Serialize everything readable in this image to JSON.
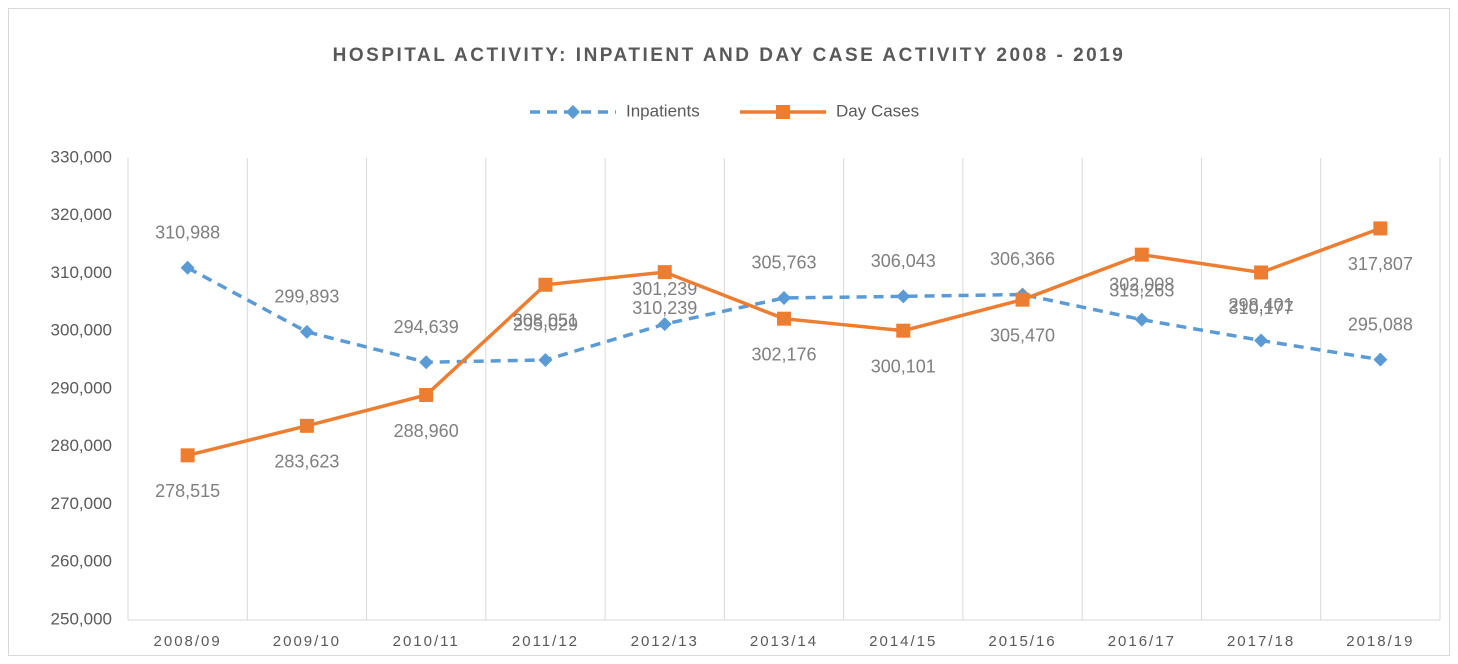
{
  "chart_data": {
    "type": "line",
    "title": "HOSPITAL ACTIVITY: INPATIENT AND DAY CASE ACTIVITY 2008 - 2019",
    "categories": [
      "2008/09",
      "2009/10",
      "2010/11",
      "2011/12",
      "2012/13",
      "2013/14",
      "2014/15",
      "2015/16",
      "2016/17",
      "2017/18",
      "2018/19"
    ],
    "series": [
      {
        "name": "Inpatients",
        "color": "#5b9bd5",
        "dashed": true,
        "marker": "diamond",
        "values": [
          310988,
          299893,
          294639,
          295029,
          301239,
          305763,
          306043,
          306366,
          302008,
          298401,
          295088
        ],
        "value_labels": [
          "310,988",
          "299,893",
          "294,639",
          "295,029",
          "301,239",
          "305,763",
          "306,043",
          "306,366",
          "302,008",
          "298,401",
          "295,088"
        ]
      },
      {
        "name": "Day Cases",
        "color": "#ed7d31",
        "dashed": false,
        "marker": "square",
        "values": [
          278515,
          283623,
          288960,
          308051,
          310239,
          302176,
          300101,
          305470,
          313263,
          310177,
          317807
        ],
        "value_labels": [
          "278,515",
          "283,623",
          "288,960",
          "308,051",
          "310,239",
          "302,176",
          "300,101",
          "305,470",
          "313,263",
          "310,177",
          "317,807"
        ]
      }
    ],
    "ylim": [
      250000,
      330000
    ],
    "yticks": [
      {
        "value": 250000,
        "label": "250,000"
      },
      {
        "value": 260000,
        "label": "260,000"
      },
      {
        "value": 270000,
        "label": "270,000"
      },
      {
        "value": 280000,
        "label": "280,000"
      },
      {
        "value": 290000,
        "label": "290,000"
      },
      {
        "value": 300000,
        "label": "300,000"
      },
      {
        "value": 310000,
        "label": "310,000"
      },
      {
        "value": 320000,
        "label": "320,000"
      },
      {
        "value": 330000,
        "label": "330,000"
      }
    ],
    "legend": "top",
    "grid": "x"
  }
}
